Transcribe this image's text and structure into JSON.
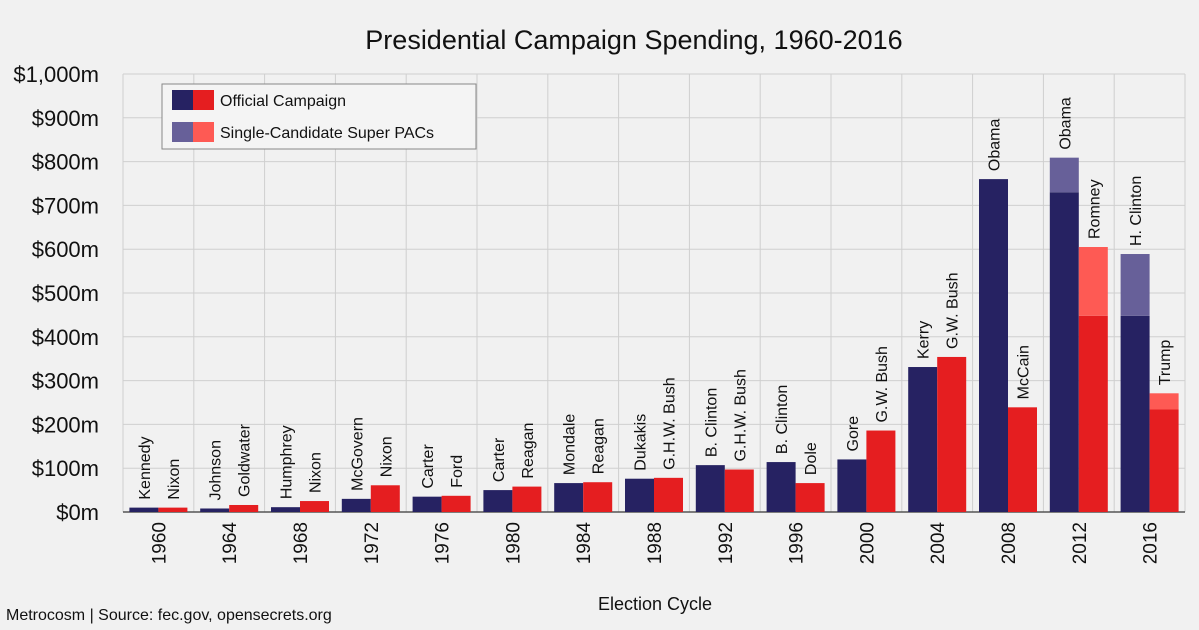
{
  "chart_data": {
    "type": "bar",
    "title": "Presidential Campaign Spending, 1960-2016",
    "xlabel": "Election Cycle",
    "ylabel": "",
    "ylim": [
      0,
      1000
    ],
    "yticks": [
      "$0m",
      "$100m",
      "$200m",
      "$300m",
      "$400m",
      "$500m",
      "$600m",
      "$700m",
      "$800m",
      "$900m",
      "$1,000m"
    ],
    "grid": true,
    "legend_position": "top-left",
    "legend": [
      "Official Campaign",
      "Single-Candidate Super PACs"
    ],
    "source": "Metrocosm | Source: fec.gov, opensecrets.org",
    "colors": {
      "dem_official": "#262262",
      "rep_official": "#e51e20",
      "dem_superpac": "#676099",
      "rep_superpac": "#fe5a54",
      "grid": "#cfcfcf",
      "background": "#f1f1f1"
    },
    "cycles": [
      {
        "year": "1960",
        "dem": {
          "name": "Kennedy",
          "official": 10,
          "superpac": 0
        },
        "rep": {
          "name": "Nixon",
          "official": 10,
          "superpac": 0
        }
      },
      {
        "year": "1964",
        "dem": {
          "name": "Johnson",
          "official": 8,
          "superpac": 0
        },
        "rep": {
          "name": "Goldwater",
          "official": 16,
          "superpac": 0
        }
      },
      {
        "year": "1968",
        "dem": {
          "name": "Humphrey",
          "official": 11,
          "superpac": 0
        },
        "rep": {
          "name": "Nixon",
          "official": 25,
          "superpac": 0
        }
      },
      {
        "year": "1972",
        "dem": {
          "name": "McGovern",
          "official": 30,
          "superpac": 0
        },
        "rep": {
          "name": "Nixon",
          "official": 61,
          "superpac": 0
        }
      },
      {
        "year": "1976",
        "dem": {
          "name": "Carter",
          "official": 35,
          "superpac": 0
        },
        "rep": {
          "name": "Ford",
          "official": 37,
          "superpac": 0
        }
      },
      {
        "year": "1980",
        "dem": {
          "name": "Carter",
          "official": 50,
          "superpac": 0
        },
        "rep": {
          "name": "Reagan",
          "official": 58,
          "superpac": 0
        }
      },
      {
        "year": "1984",
        "dem": {
          "name": "Mondale",
          "official": 66,
          "superpac": 0
        },
        "rep": {
          "name": "Reagan",
          "official": 68,
          "superpac": 0
        }
      },
      {
        "year": "1988",
        "dem": {
          "name": "Dukakis",
          "official": 76,
          "superpac": 0
        },
        "rep": {
          "name": "G.H.W. Bush",
          "official": 78,
          "superpac": 0
        }
      },
      {
        "year": "1992",
        "dem": {
          "name": "B. Clinton",
          "official": 107,
          "superpac": 0
        },
        "rep": {
          "name": "G.H.W. Bush",
          "official": 97,
          "superpac": 0
        }
      },
      {
        "year": "1996",
        "dem": {
          "name": "B. Clinton",
          "official": 114,
          "superpac": 0
        },
        "rep": {
          "name": "Dole",
          "official": 66,
          "superpac": 0
        }
      },
      {
        "year": "2000",
        "dem": {
          "name": "Gore",
          "official": 120,
          "superpac": 0
        },
        "rep": {
          "name": "G.W. Bush",
          "official": 186,
          "superpac": 0
        }
      },
      {
        "year": "2004",
        "dem": {
          "name": "Kerry",
          "official": 331,
          "superpac": 0
        },
        "rep": {
          "name": "G.W. Bush",
          "official": 354,
          "superpac": 0
        }
      },
      {
        "year": "2008",
        "dem": {
          "name": "Obama",
          "official": 760,
          "superpac": 0
        },
        "rep": {
          "name": "McCain",
          "official": 239,
          "superpac": 0
        }
      },
      {
        "year": "2012",
        "dem": {
          "name": "Obama",
          "official": 730,
          "superpac": 79
        },
        "rep": {
          "name": "Romney",
          "official": 448,
          "superpac": 157
        }
      },
      {
        "year": "2016",
        "dem": {
          "name": "H. Clinton",
          "official": 448,
          "superpac": 141
        },
        "rep": {
          "name": "Trump",
          "official": 234,
          "superpac": 37
        }
      }
    ]
  }
}
